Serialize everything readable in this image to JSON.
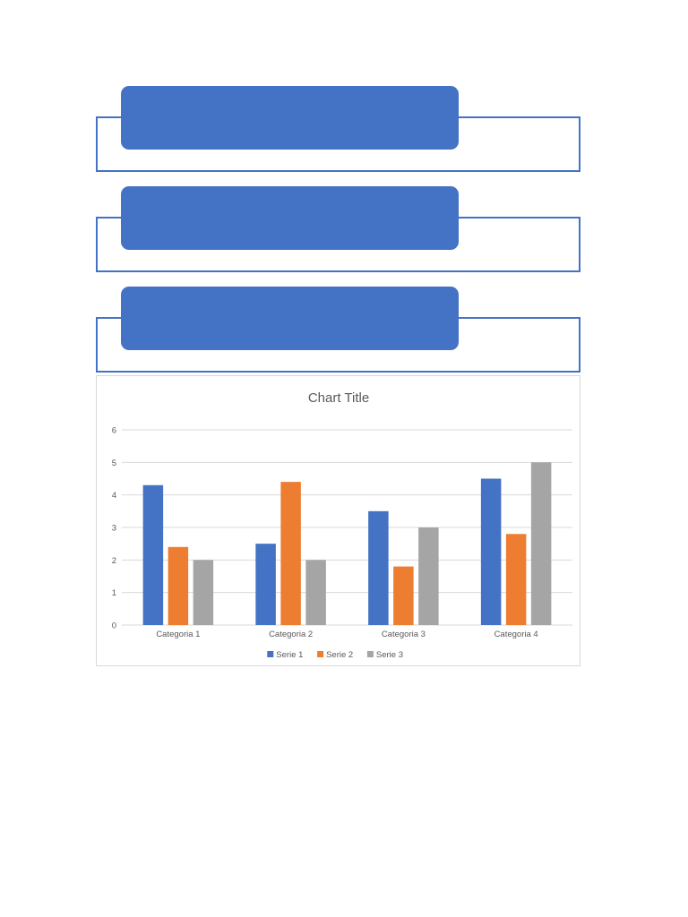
{
  "diagram": {
    "items": [
      {
        "text": ""
      },
      {
        "text": ""
      },
      {
        "text": ""
      }
    ],
    "colors": {
      "accent": "#4472c4"
    }
  },
  "chart_data": {
    "type": "bar",
    "title": "Chart Title",
    "categories": [
      "Categoria 1",
      "Categoria 2",
      "Categoria 3",
      "Categoria 4"
    ],
    "series": [
      {
        "name": "Serie 1",
        "color": "#4472c4",
        "values": [
          4.3,
          2.5,
          3.5,
          4.5
        ]
      },
      {
        "name": "Serie 2",
        "color": "#ed7d31",
        "values": [
          2.4,
          4.4,
          1.8,
          2.8
        ]
      },
      {
        "name": "Serie 3",
        "color": "#a5a5a5",
        "values": [
          2,
          2,
          3,
          5
        ]
      }
    ],
    "ylim": [
      0,
      6
    ],
    "yticks": [
      0,
      1,
      2,
      3,
      4,
      5,
      6
    ],
    "grid": true,
    "legend": "bottom"
  }
}
